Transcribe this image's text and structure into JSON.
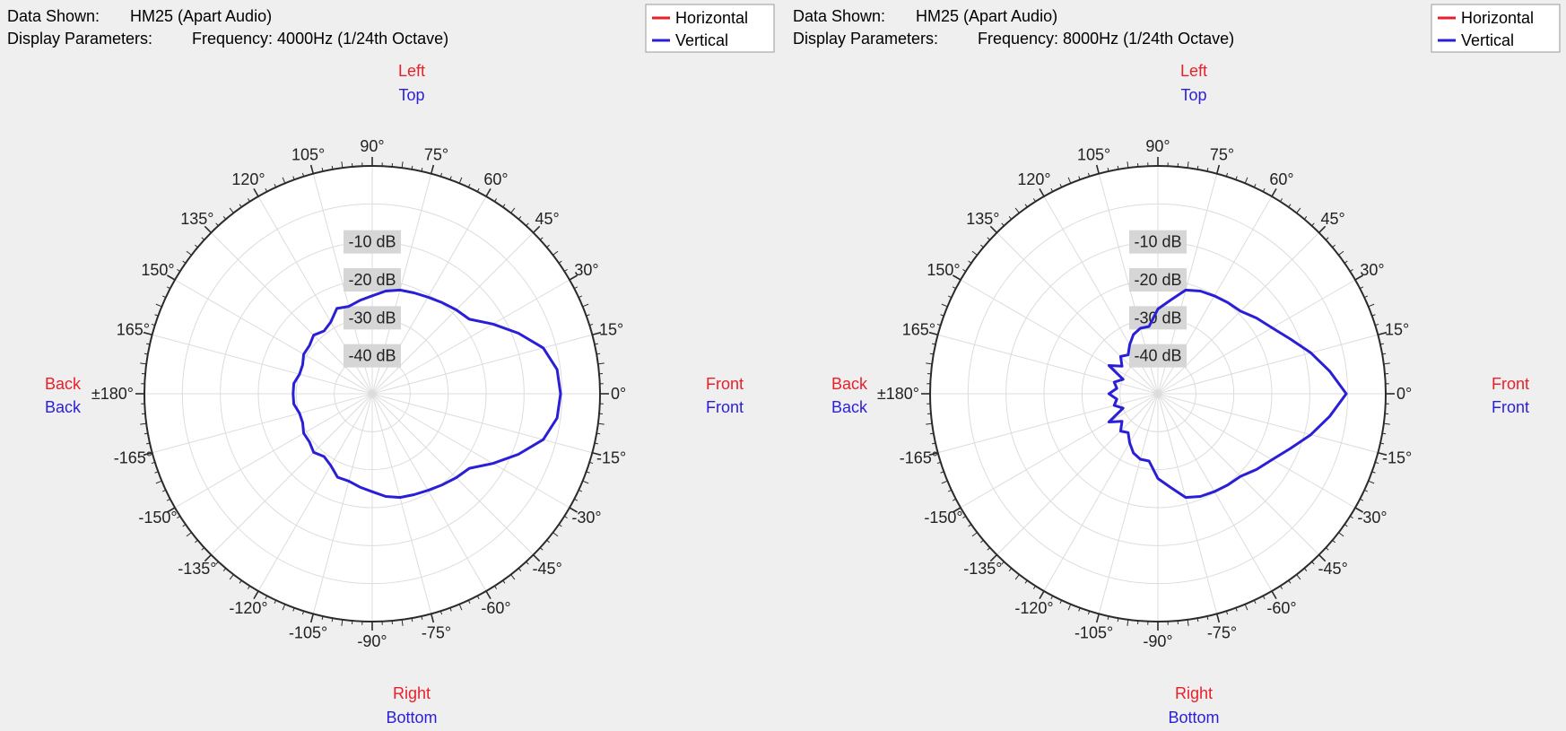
{
  "colors": {
    "background": "#efefef",
    "plot_background": "#ffffff",
    "grid": "#dcdcdc",
    "ring": "#2a2a2a",
    "horizontal": "#e8202a",
    "vertical": "#2a1fd6",
    "db_label_bg": "#d6d6d6"
  },
  "chart_data": [
    {
      "type": "polar",
      "info": {
        "data_label": "Data Shown:",
        "data_value": "HM25 (Apart Audio)",
        "params_label": "Display Parameters:",
        "params_value": "Frequency: 4000Hz (1/24th Octave)"
      },
      "legend": {
        "position": "top-right",
        "entries": [
          {
            "name": "Horizontal",
            "color": "#e8202a"
          },
          {
            "name": "Vertical",
            "color": "#2a1fd6"
          }
        ]
      },
      "orientation_labels": {
        "top": [
          "Left",
          "Top"
        ],
        "bottom": [
          "Right",
          "Bottom"
        ],
        "left": [
          "Back",
          "Back"
        ],
        "right": [
          "Front",
          "Front"
        ]
      },
      "angle_ticks": [
        "0°",
        "15°",
        "30°",
        "45°",
        "60°",
        "75°",
        "90°",
        "105°",
        "120°",
        "135°",
        "150°",
        "165°",
        "±180°",
        "-165°",
        "-150°",
        "-135°",
        "-120°",
        "-105°",
        "-90°",
        "-75°",
        "-60°",
        "-45°",
        "-30°",
        "-15°"
      ],
      "radial_labels": [
        {
          "text": "-10 dB",
          "value": -10
        },
        {
          "text": "-20 dB",
          "value": -20
        },
        {
          "text": "-30 dB",
          "value": -30
        },
        {
          "text": "-40 dB",
          "value": -40
        }
      ],
      "r_range_db": [
        -50,
        0
      ],
      "grid": true,
      "series": [
        {
          "name": "Vertical",
          "angles_deg": [
            0,
            7.5,
            15,
            22.5,
            30,
            37.5,
            45,
            52.5,
            60,
            67.5,
            75,
            82.5,
            90,
            97.5,
            105,
            112.5,
            120,
            127.5,
            135,
            142.5,
            150,
            157.5,
            165,
            172.5,
            180,
            -172.5,
            -165,
            -157.5,
            -150,
            -142.5,
            -135,
            -127.5,
            -120,
            -112.5,
            -105,
            -97.5,
            -90,
            -82.5,
            -75,
            -67.5,
            -60,
            -52.5,
            -45,
            -37.5,
            -30,
            -22.5,
            -15,
            -7.5
          ],
          "values_db": [
            0,
            -0.5,
            -3,
            -8,
            -13,
            -17.5,
            -18.5,
            -19.5,
            -20.4,
            -21,
            -21.5,
            -22.5,
            -24,
            -25,
            -26,
            -25.5,
            -28,
            -29,
            -28,
            -29,
            -29,
            -30,
            -30,
            -29,
            -29,
            -29,
            -30,
            -30,
            -29,
            -29,
            -28,
            -29,
            -28,
            -26,
            -26,
            -25,
            -24,
            -22.5,
            -21.5,
            -21,
            -20.4,
            -19.5,
            -18.5,
            -17.5,
            -13,
            -8,
            -3,
            -0.5
          ]
        }
      ]
    },
    {
      "type": "polar",
      "info": {
        "data_label": "Data Shown:",
        "data_value": "HM25 (Apart Audio)",
        "params_label": "Display Parameters:",
        "params_value": "Frequency: 8000Hz (1/24th Octave)"
      },
      "legend": {
        "position": "top-right",
        "entries": [
          {
            "name": "Horizontal",
            "color": "#e8202a"
          },
          {
            "name": "Vertical",
            "color": "#2a1fd6"
          }
        ]
      },
      "orientation_labels": {
        "top": [
          "Left",
          "Top"
        ],
        "bottom": [
          "Right",
          "Bottom"
        ],
        "left": [
          "Back",
          "Back"
        ],
        "right": [
          "Front",
          "Front"
        ]
      },
      "angle_ticks": [
        "0°",
        "15°",
        "30°",
        "45°",
        "60°",
        "75°",
        "90°",
        "105°",
        "120°",
        "135°",
        "150°",
        "165°",
        "±180°",
        "-165°",
        "-150°",
        "-135°",
        "-120°",
        "-105°",
        "-90°",
        "-75°",
        "-60°",
        "-45°",
        "-30°",
        "-15°"
      ],
      "radial_labels": [
        {
          "text": "-10 dB",
          "value": -10
        },
        {
          "text": "-20 dB",
          "value": -20
        },
        {
          "text": "-30 dB",
          "value": -30
        },
        {
          "text": "-40 dB",
          "value": -40
        }
      ],
      "r_range_db": [
        -50,
        0
      ],
      "grid": true,
      "series": [
        {
          "name": "Vertical",
          "angles_deg": [
            0,
            7.5,
            15,
            22.5,
            30,
            37.5,
            45,
            52.5,
            60,
            67.5,
            75,
            82.5,
            90,
            97.5,
            105,
            112.5,
            120,
            127.5,
            135,
            142.5,
            150,
            157.5,
            165,
            172.5,
            180,
            -172.5,
            -165,
            -157.5,
            -150,
            -142.5,
            -135,
            -127.5,
            -120,
            -112.5,
            -105,
            -97.5,
            -90,
            -82.5,
            -75,
            -67.5,
            -60,
            -52.5,
            -45,
            -37.5,
            -30,
            -22.5,
            -15,
            -7.5
          ],
          "values_db": [
            0,
            -4,
            -8,
            -12,
            -15,
            -17,
            -19,
            -19.5,
            -20,
            -20.5,
            -21.5,
            -25,
            -27.5,
            -32,
            -32,
            -33,
            -35,
            -37,
            -36,
            -38,
            -35,
            -40,
            -38,
            -39,
            -37,
            -39,
            -38,
            -40,
            -35,
            -38,
            -36,
            -37,
            -35,
            -33,
            -32,
            -32,
            -27.5,
            -25,
            -21.5,
            -20.5,
            -20,
            -19.5,
            -19,
            -17,
            -15,
            -12,
            -8,
            -4
          ]
        }
      ]
    }
  ]
}
